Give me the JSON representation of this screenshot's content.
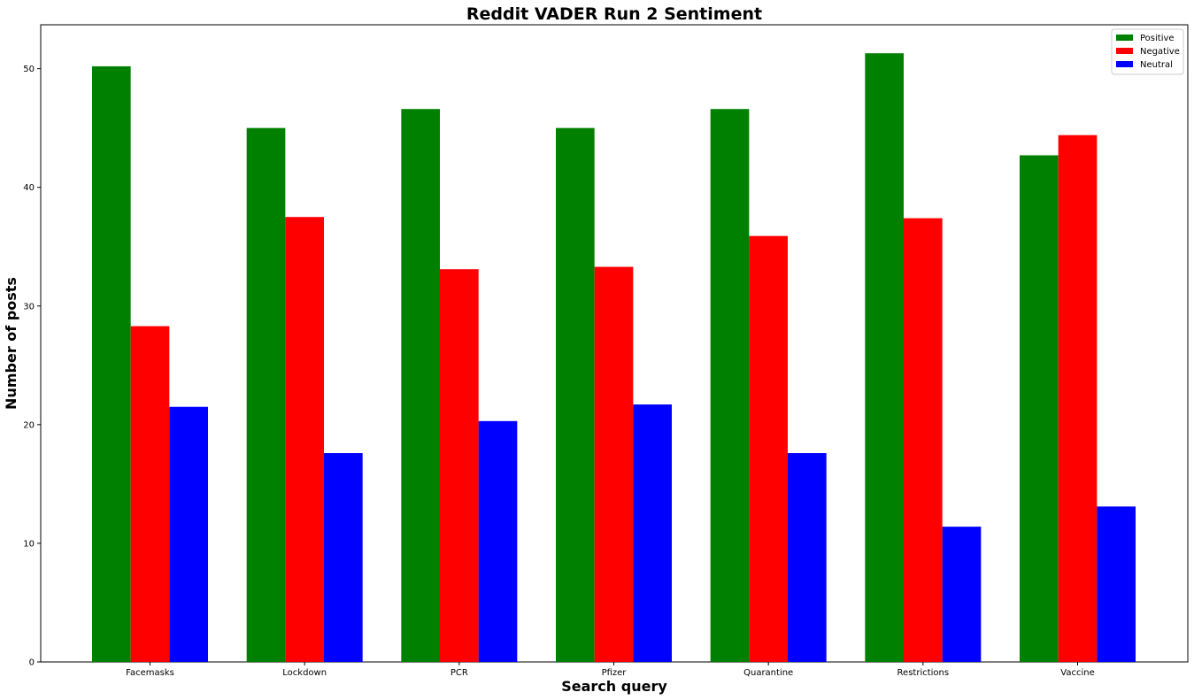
{
  "chart_data": {
    "type": "bar",
    "title": "Reddit VADER Run 2 Sentiment",
    "xlabel": "Search query",
    "ylabel": "Number of posts",
    "categories": [
      "Facemasks",
      "Lockdown",
      "PCR",
      "Pfizer",
      "Quarantine",
      "Restrictions",
      "Vaccine"
    ],
    "series": [
      {
        "name": "Positive",
        "color": "#008000",
        "values": [
          50.2,
          45.0,
          46.6,
          45.0,
          46.6,
          51.3,
          42.7
        ]
      },
      {
        "name": "Negative",
        "color": "#ff0000",
        "values": [
          28.3,
          37.5,
          33.1,
          33.3,
          35.9,
          37.4,
          44.4
        ]
      },
      {
        "name": "Neutral",
        "color": "#0000ff",
        "values": [
          21.5,
          17.6,
          20.3,
          21.7,
          17.6,
          11.4,
          13.1
        ]
      }
    ],
    "ylim": [
      0,
      53.7
    ],
    "yticks": [
      0,
      10,
      20,
      30,
      40,
      50
    ],
    "grid": false,
    "legend_position": "top-right"
  }
}
